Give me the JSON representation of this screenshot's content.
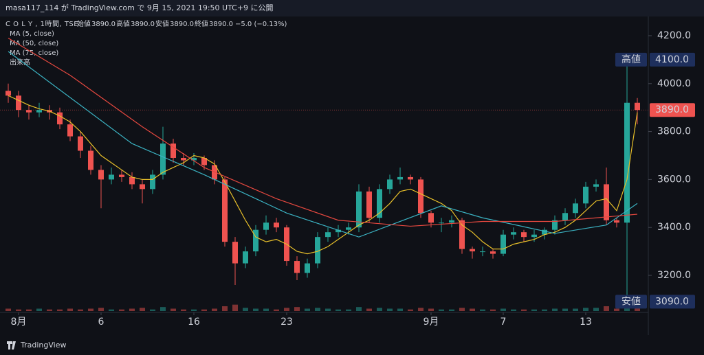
{
  "header": {
    "title": "masa117_114 が TradingView.com で 9月 15, 2021 19:50 UTC+9 に公開"
  },
  "legend": {
    "symbol": "C O L Y , 1時間, TSE",
    "ohlc": [
      {
        "name": "始値",
        "value": "3890.0"
      },
      {
        "name": "高値",
        "value": "3890.0"
      },
      {
        "name": "安値",
        "value": "3890.0"
      },
      {
        "name": "終値",
        "value": "3890.0"
      }
    ],
    "change": "−5.0 (−0.13%)",
    "studies": [
      "MA (5, close)",
      "MA (50, close)",
      "MA (75, close)",
      "出来高"
    ]
  },
  "chart_data": {
    "type": "candlestick",
    "open": [
      3970,
      3950,
      3890,
      3880,
      3890,
      3880,
      3830,
      3780,
      3720,
      3640,
      3600,
      3620,
      3610,
      3580,
      3560,
      3620,
      3750,
      3690,
      3680,
      3690,
      3660,
      3600,
      3340,
      3250,
      3300,
      3390,
      3420,
      3400,
      3260,
      3210,
      3250,
      3360,
      3380,
      3390,
      3400,
      3550,
      3440,
      3560,
      3600,
      3610,
      3600,
      3460,
      3420,
      3420,
      3430,
      3310,
      3300,
      3300,
      3290,
      3370,
      3380,
      3360,
      3370,
      3390,
      3430,
      3460,
      3500,
      3570,
      3580,
      3430,
      3420,
      3920
    ],
    "high": [
      4000,
      3970,
      3910,
      3920,
      3910,
      3900,
      3850,
      3800,
      3740,
      3660,
      3650,
      3640,
      3630,
      3600,
      3640,
      3820,
      3770,
      3710,
      3710,
      3700,
      3680,
      3610,
      3360,
      3320,
      3410,
      3450,
      3440,
      3410,
      3280,
      3270,
      3380,
      3400,
      3410,
      3420,
      3580,
      3570,
      3580,
      3620,
      3650,
      3620,
      3610,
      3470,
      3440,
      3450,
      3440,
      3320,
      3320,
      3310,
      3390,
      3400,
      3390,
      3390,
      3400,
      3450,
      3480,
      3520,
      3590,
      3600,
      3650,
      3440,
      4100,
      3940
    ],
    "low": [
      3920,
      3860,
      3850,
      3860,
      3850,
      3810,
      3760,
      3690,
      3620,
      3480,
      3580,
      3590,
      3560,
      3500,
      3540,
      3600,
      3670,
      3660,
      3660,
      3640,
      3580,
      3320,
      3160,
      3230,
      3280,
      3370,
      3380,
      3240,
      3180,
      3190,
      3230,
      3340,
      3360,
      3370,
      3380,
      3420,
      3420,
      3540,
      3580,
      3580,
      3440,
      3400,
      3380,
      3400,
      3290,
      3270,
      3280,
      3270,
      3280,
      3350,
      3340,
      3340,
      3350,
      3370,
      3410,
      3440,
      3480,
      3550,
      3410,
      3400,
      3090,
      3830
    ],
    "close": [
      3950,
      3890,
      3880,
      3890,
      3880,
      3830,
      3780,
      3720,
      3640,
      3600,
      3620,
      3610,
      3580,
      3560,
      3620,
      3750,
      3690,
      3680,
      3690,
      3660,
      3600,
      3340,
      3250,
      3300,
      3390,
      3420,
      3400,
      3260,
      3210,
      3250,
      3360,
      3380,
      3390,
      3400,
      3550,
      3440,
      3560,
      3600,
      3610,
      3600,
      3460,
      3420,
      3420,
      3430,
      3310,
      3300,
      3300,
      3290,
      3370,
      3380,
      3360,
      3370,
      3390,
      3430,
      3460,
      3500,
      3570,
      3580,
      3430,
      3420,
      3920,
      3890
    ],
    "volume": [
      3,
      2,
      2,
      3,
      2,
      2,
      3,
      2,
      3,
      4,
      2,
      2,
      3,
      4,
      2,
      5,
      3,
      2,
      2,
      2,
      3,
      6,
      8,
      4,
      3,
      3,
      2,
      4,
      5,
      3,
      4,
      3,
      2,
      2,
      5,
      3,
      4,
      3,
      3,
      2,
      4,
      3,
      2,
      2,
      4,
      3,
      2,
      2,
      3,
      2,
      2,
      2,
      2,
      3,
      3,
      3,
      4,
      4,
      6,
      3,
      12,
      5
    ],
    "up_color": "#26a69a",
    "down_color": "#ef5350",
    "series": [
      {
        "name": "MA (5, close)",
        "color": "#e8c02a",
        "x": [
          0,
          1,
          2,
          3,
          4,
          5,
          6,
          7,
          8,
          9,
          10,
          11,
          12,
          13,
          14,
          15,
          16,
          17,
          18,
          19,
          20,
          21,
          22,
          23,
          24,
          25,
          26,
          27,
          28,
          29,
          30,
          31,
          32,
          33,
          34,
          35,
          36,
          37,
          38,
          39,
          40,
          41,
          42,
          43,
          44,
          45,
          46,
          47,
          48,
          49,
          50,
          51,
          52,
          53,
          54,
          55,
          56,
          57,
          58,
          59,
          60,
          61
        ],
        "values": [
          3950,
          3930,
          3910,
          3895,
          3885,
          3865,
          3840,
          3800,
          3750,
          3700,
          3670,
          3640,
          3610,
          3600,
          3600,
          3630,
          3650,
          3670,
          3700,
          3690,
          3665,
          3590,
          3510,
          3430,
          3360,
          3340,
          3350,
          3330,
          3300,
          3290,
          3300,
          3320,
          3350,
          3380,
          3410,
          3430,
          3460,
          3500,
          3550,
          3560,
          3540,
          3520,
          3500,
          3470,
          3410,
          3380,
          3340,
          3310,
          3310,
          3330,
          3340,
          3350,
          3370,
          3380,
          3400,
          3430,
          3470,
          3510,
          3520,
          3470,
          3600,
          3880
        ]
      },
      {
        "name": "MA (50, close)",
        "color": "#3bb3c3",
        "x": [
          0,
          12,
          19,
          27,
          34,
          42,
          46,
          53,
          58,
          61
        ],
        "values": [
          4134,
          3750,
          3620,
          3460,
          3360,
          3490,
          3440,
          3375,
          3410,
          3500
        ]
      },
      {
        "name": "MA (75, close)",
        "color": "#e5483f",
        "x": [
          0,
          6,
          13,
          19,
          26,
          32,
          39,
          46,
          53,
          61
        ],
        "values": [
          4190,
          4035,
          3820,
          3650,
          3520,
          3430,
          3405,
          3425,
          3425,
          3455
        ]
      }
    ],
    "xticks": [
      {
        "value": 1,
        "label": "8月"
      },
      {
        "value": 9,
        "label": "6"
      },
      {
        "value": 18,
        "label": "16"
      },
      {
        "value": 27,
        "label": "23"
      },
      {
        "value": 41,
        "label": "9月"
      },
      {
        "value": 48,
        "label": "7"
      },
      {
        "value": 56,
        "label": "13"
      }
    ],
    "ylim": [
      3040,
      4270
    ],
    "yticks": [
      {
        "value": 4200,
        "label": "4200.0"
      },
      {
        "value": 4000,
        "label": "4000.0"
      },
      {
        "value": 3800,
        "label": "3800.0"
      },
      {
        "value": 3600,
        "label": "3600.0"
      },
      {
        "value": 3400,
        "label": "3400.0"
      },
      {
        "value": 3200,
        "label": "3200.0"
      }
    ],
    "price_labels": [
      {
        "name": "高値",
        "value": 4100,
        "label": "4100.0",
        "color": "#1e2f5c"
      },
      {
        "value": 3890,
        "label": "3890.0",
        "color": "#ef5350"
      },
      {
        "name": "安値",
        "value": 3090,
        "label": "3090.0",
        "color": "#1e2f5c"
      }
    ],
    "last_price": 3890
  },
  "footer": {
    "brand": "TradingView"
  }
}
